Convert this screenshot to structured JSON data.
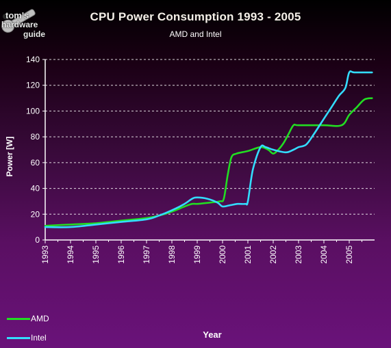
{
  "chart_data": {
    "type": "line",
    "title": "CPU Power Consumption 1993 - 2005",
    "subtitle": "AMD and Intel",
    "xlabel": "Year",
    "ylabel": "Power [W]",
    "xlim": [
      1993,
      2006
    ],
    "ylim": [
      0,
      140
    ],
    "x_ticks": [
      "1993",
      "1994",
      "1995",
      "1996",
      "1997",
      "1998",
      "1999",
      "2000",
      "2001",
      "2002",
      "2003",
      "2004",
      "2005"
    ],
    "y_ticks": [
      "0",
      "20",
      "40",
      "60",
      "80",
      "100",
      "120",
      "140"
    ],
    "grid": "horizontal-dashed",
    "legend_position": "bottom-left",
    "series": [
      {
        "name": "AMD",
        "color": "#22dd22",
        "points": [
          [
            1993.0,
            11
          ],
          [
            1994.0,
            12
          ],
          [
            1995.0,
            13
          ],
          [
            1996.0,
            15
          ],
          [
            1997.0,
            17
          ],
          [
            1997.5,
            19
          ],
          [
            1998.0,
            22
          ],
          [
            1998.5,
            26
          ],
          [
            1998.8,
            28
          ],
          [
            1999.0,
            28
          ],
          [
            1999.5,
            29
          ],
          [
            1999.9,
            30
          ],
          [
            2000.05,
            32
          ],
          [
            2000.2,
            50
          ],
          [
            2000.35,
            64
          ],
          [
            2000.55,
            67
          ],
          [
            2001.0,
            69
          ],
          [
            2001.5,
            72
          ],
          [
            2001.8,
            70
          ],
          [
            2002.0,
            67
          ],
          [
            2002.2,
            70
          ],
          [
            2002.4,
            75
          ],
          [
            2002.6,
            82
          ],
          [
            2002.8,
            89
          ],
          [
            2003.0,
            89
          ],
          [
            2004.0,
            89
          ],
          [
            2004.7,
            89
          ],
          [
            2005.0,
            97
          ],
          [
            2005.3,
            103
          ],
          [
            2005.6,
            109
          ],
          [
            2005.9,
            110
          ]
        ]
      },
      {
        "name": "Intel",
        "color": "#33ddff",
        "points": [
          [
            1993.0,
            10
          ],
          [
            1994.0,
            10
          ],
          [
            1995.0,
            12
          ],
          [
            1996.0,
            14
          ],
          [
            1997.0,
            16
          ],
          [
            1997.5,
            19
          ],
          [
            1998.0,
            23
          ],
          [
            1998.5,
            28
          ],
          [
            1998.8,
            32
          ],
          [
            1999.0,
            33
          ],
          [
            1999.4,
            32
          ],
          [
            1999.8,
            29
          ],
          [
            2000.0,
            26
          ],
          [
            2000.3,
            27
          ],
          [
            2000.6,
            28
          ],
          [
            2000.9,
            28
          ],
          [
            2001.0,
            30
          ],
          [
            2001.2,
            55
          ],
          [
            2001.5,
            72
          ],
          [
            2001.7,
            72
          ],
          [
            2002.0,
            70
          ],
          [
            2002.5,
            68
          ],
          [
            2002.8,
            70
          ],
          [
            2003.0,
            72
          ],
          [
            2003.3,
            74
          ],
          [
            2003.6,
            82
          ],
          [
            2004.0,
            94
          ],
          [
            2004.3,
            103
          ],
          [
            2004.6,
            112
          ],
          [
            2004.85,
            118
          ],
          [
            2005.0,
            130
          ],
          [
            2005.2,
            130
          ],
          [
            2005.9,
            130
          ]
        ]
      }
    ]
  },
  "logo": {
    "line1": "tom's",
    "line2": "hardware",
    "line3": "guide"
  }
}
